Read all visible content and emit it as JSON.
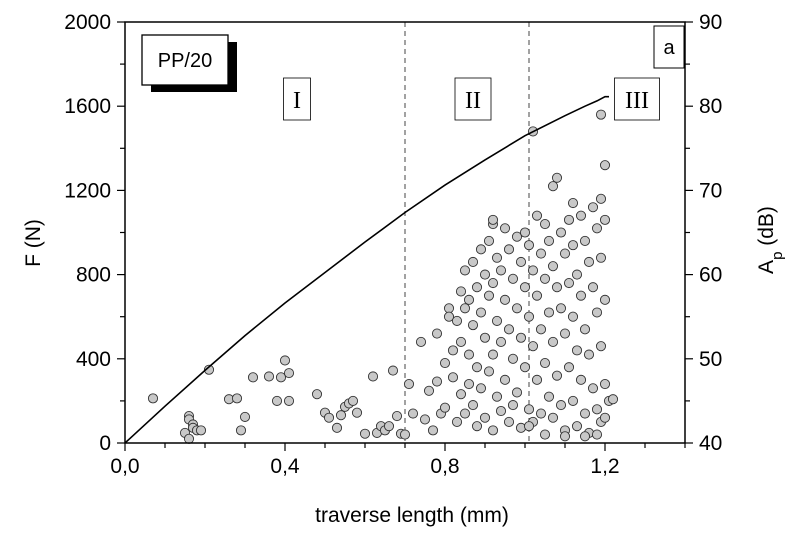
{
  "chart_data": {
    "type": "scatter",
    "title": "",
    "sample_label": "PP/20",
    "panel_label": "a",
    "xlabel": "traverse length  (mm)",
    "ylabel_left": "F (N)",
    "ylabel_right_base": "A",
    "ylabel_right_sub": "p",
    "ylabel_right_unit": " (dB)",
    "xlim": [
      0,
      1.4
    ],
    "ylim_left": [
      0,
      2000
    ],
    "ylim_right": [
      40,
      90
    ],
    "x_ticks": [
      0.0,
      0.4,
      0.8,
      1.2
    ],
    "x_tick_labels": [
      "0,0",
      "0,4",
      "0,8",
      "1,2"
    ],
    "y_left_ticks": [
      0,
      400,
      800,
      1200,
      1600,
      2000
    ],
    "y_left_tick_labels": [
      "0",
      "400",
      "800",
      "1200",
      "1600",
      "2000"
    ],
    "y_right_ticks": [
      40,
      50,
      60,
      70,
      80,
      90
    ],
    "y_right_tick_labels": [
      "40",
      "50",
      "60",
      "70",
      "80",
      "90"
    ],
    "stage_boundaries": [
      0.7,
      1.01
    ],
    "stages": [
      {
        "label": "I",
        "x": 0.43
      },
      {
        "label": "II",
        "x": 0.87
      },
      {
        "label": "III",
        "x": 1.28
      }
    ],
    "grid": false,
    "legend": "none",
    "series": [
      {
        "kind": "line",
        "axis": "left",
        "color": "#000000",
        "x": [
          0.0,
          0.1,
          0.2,
          0.3,
          0.4,
          0.5,
          0.6,
          0.7,
          0.8,
          0.9,
          1.0,
          1.1,
          1.15,
          1.18,
          1.2,
          1.21
        ],
        "y": [
          0,
          175,
          345,
          510,
          665,
          810,
          955,
          1095,
          1225,
          1345,
          1460,
          1555,
          1600,
          1625,
          1645,
          1645
        ]
      },
      {
        "kind": "scatter",
        "axis": "right",
        "marker_fill": "#c8c8c8",
        "marker_edge": "#333333",
        "points": [
          [
            0.07,
            45.3
          ],
          [
            0.15,
            41.2
          ],
          [
            0.16,
            43.2
          ],
          [
            0.16,
            42.8
          ],
          [
            0.17,
            42.2
          ],
          [
            0.17,
            41.8
          ],
          [
            0.18,
            41.5
          ],
          [
            0.19,
            41.5
          ],
          [
            0.16,
            40.5
          ],
          [
            0.21,
            48.7
          ],
          [
            0.26,
            45.2
          ],
          [
            0.28,
            45.3
          ],
          [
            0.29,
            41.5
          ],
          [
            0.3,
            43.1
          ],
          [
            0.32,
            47.8
          ],
          [
            0.36,
            47.9
          ],
          [
            0.38,
            45.0
          ],
          [
            0.39,
            47.8
          ],
          [
            0.4,
            49.8
          ],
          [
            0.41,
            48.3
          ],
          [
            0.41,
            45.0
          ],
          [
            0.48,
            45.8
          ],
          [
            0.5,
            43.6
          ],
          [
            0.51,
            43.0
          ],
          [
            0.53,
            41.8
          ],
          [
            0.54,
            43.3
          ],
          [
            0.55,
            44.3
          ],
          [
            0.56,
            44.7
          ],
          [
            0.57,
            45.0
          ],
          [
            0.58,
            43.6
          ],
          [
            0.6,
            41.1
          ],
          [
            0.62,
            47.9
          ],
          [
            0.63,
            41.2
          ],
          [
            0.64,
            42.0
          ],
          [
            0.65,
            41.5
          ],
          [
            0.66,
            42.0
          ],
          [
            0.67,
            48.6
          ],
          [
            0.68,
            43.2
          ],
          [
            0.69,
            41.1
          ],
          [
            0.7,
            41.0
          ],
          [
            0.71,
            47.0
          ],
          [
            0.72,
            43.5
          ],
          [
            0.74,
            52.0
          ],
          [
            0.75,
            42.8
          ],
          [
            0.76,
            46.2
          ],
          [
            0.77,
            41.5
          ],
          [
            0.78,
            47.3
          ],
          [
            0.78,
            53.0
          ],
          [
            0.79,
            43.5
          ],
          [
            0.8,
            44.2
          ],
          [
            0.8,
            49.5
          ],
          [
            0.81,
            56.0
          ],
          [
            0.81,
            55.0
          ],
          [
            0.82,
            51.0
          ],
          [
            0.82,
            47.8
          ],
          [
            0.83,
            42.5
          ],
          [
            0.83,
            54.5
          ],
          [
            0.84,
            58.0
          ],
          [
            0.84,
            52.0
          ],
          [
            0.84,
            45.8
          ],
          [
            0.85,
            56.0
          ],
          [
            0.85,
            60.5
          ],
          [
            0.85,
            43.5
          ],
          [
            0.86,
            50.5
          ],
          [
            0.86,
            57.0
          ],
          [
            0.86,
            47.0
          ],
          [
            0.87,
            61.5
          ],
          [
            0.87,
            54.0
          ],
          [
            0.87,
            44.5
          ],
          [
            0.88,
            58.5
          ],
          [
            0.88,
            49.0
          ],
          [
            0.88,
            42.0
          ],
          [
            0.89,
            63.0
          ],
          [
            0.89,
            55.5
          ],
          [
            0.89,
            46.5
          ],
          [
            0.9,
            60.0
          ],
          [
            0.9,
            52.5
          ],
          [
            0.9,
            43.0
          ],
          [
            0.91,
            64.0
          ],
          [
            0.91,
            57.5
          ],
          [
            0.91,
            48.5
          ],
          [
            0.92,
            66.0
          ],
          [
            0.92,
            59.0
          ],
          [
            0.92,
            50.5
          ],
          [
            0.92,
            41.5
          ],
          [
            0.93,
            62.0
          ],
          [
            0.93,
            54.5
          ],
          [
            0.93,
            45.5
          ],
          [
            0.94,
            60.5
          ],
          [
            0.94,
            52.0
          ],
          [
            0.94,
            43.8
          ],
          [
            0.95,
            65.5
          ],
          [
            0.95,
            57.0
          ],
          [
            0.95,
            47.5
          ],
          [
            0.96,
            63.0
          ],
          [
            0.96,
            53.5
          ],
          [
            0.96,
            42.5
          ],
          [
            0.97,
            59.5
          ],
          [
            0.97,
            50.0
          ],
          [
            0.97,
            44.5
          ],
          [
            0.98,
            64.5
          ],
          [
            0.98,
            56.0
          ],
          [
            0.98,
            46.0
          ],
          [
            0.99,
            61.5
          ],
          [
            0.99,
            52.5
          ],
          [
            0.99,
            41.8
          ],
          [
            1.0,
            65.0
          ],
          [
            1.0,
            58.5
          ],
          [
            1.0,
            49.0
          ],
          [
            1.01,
            63.5
          ],
          [
            1.01,
            55.0
          ],
          [
            1.01,
            44.0
          ],
          [
            1.02,
            60.5
          ],
          [
            1.02,
            51.5
          ],
          [
            1.02,
            42.5
          ],
          [
            1.03,
            67.0
          ],
          [
            1.03,
            57.5
          ],
          [
            1.03,
            47.5
          ],
          [
            1.04,
            62.5
          ],
          [
            1.04,
            53.5
          ],
          [
            1.04,
            43.5
          ],
          [
            1.05,
            66.0
          ],
          [
            1.05,
            59.5
          ],
          [
            1.05,
            49.5
          ],
          [
            1.05,
            41.0
          ],
          [
            1.06,
            64.0
          ],
          [
            1.06,
            55.5
          ],
          [
            1.06,
            45.5
          ],
          [
            1.07,
            61.0
          ],
          [
            1.07,
            52.0
          ],
          [
            1.07,
            43.0
          ],
          [
            1.08,
            71.5
          ],
          [
            1.08,
            58.5
          ],
          [
            1.08,
            48.0
          ],
          [
            1.09,
            65.0
          ],
          [
            1.09,
            56.0
          ],
          [
            1.09,
            44.5
          ],
          [
            1.1,
            62.5
          ],
          [
            1.1,
            53.0
          ],
          [
            1.1,
            41.5
          ],
          [
            1.11,
            66.5
          ],
          [
            1.11,
            59.0
          ],
          [
            1.11,
            49.0
          ],
          [
            1.12,
            63.5
          ],
          [
            1.12,
            55.0
          ],
          [
            1.12,
            45.0
          ],
          [
            1.13,
            60.0
          ],
          [
            1.13,
            51.0
          ],
          [
            1.13,
            42.0
          ],
          [
            1.14,
            67.0
          ],
          [
            1.14,
            57.5
          ],
          [
            1.14,
            47.5
          ],
          [
            1.15,
            64.0
          ],
          [
            1.15,
            53.5
          ],
          [
            1.15,
            43.5
          ],
          [
            1.16,
            61.5
          ],
          [
            1.16,
            50.5
          ],
          [
            1.16,
            41.2
          ],
          [
            1.17,
            68.0
          ],
          [
            1.17,
            58.5
          ],
          [
            1.17,
            46.5
          ],
          [
            1.18,
            65.5
          ],
          [
            1.18,
            55.5
          ],
          [
            1.18,
            44.0
          ],
          [
            1.19,
            69.0
          ],
          [
            1.19,
            62.0
          ],
          [
            1.19,
            51.5
          ],
          [
            1.19,
            42.5
          ],
          [
            1.2,
            66.5
          ],
          [
            1.2,
            57.0
          ],
          [
            1.2,
            47.0
          ],
          [
            1.2,
            43.0
          ],
          [
            1.21,
            45.0
          ],
          [
            1.22,
            45.2
          ],
          [
            1.02,
            77.0
          ],
          [
            1.19,
            79.0
          ],
          [
            1.2,
            73.0
          ],
          [
            1.07,
            70.5
          ],
          [
            1.12,
            68.5
          ],
          [
            0.92,
            66.5
          ],
          [
            1.01,
            42.0
          ],
          [
            1.1,
            40.8
          ],
          [
            1.15,
            40.8
          ],
          [
            1.18,
            41.0
          ]
        ]
      }
    ]
  }
}
